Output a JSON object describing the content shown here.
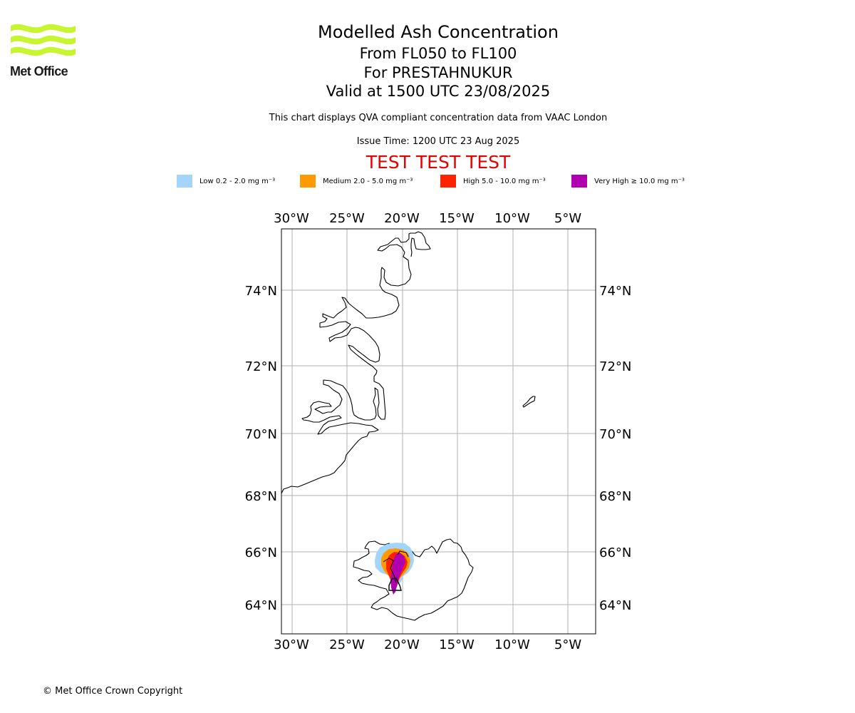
{
  "logo": {
    "name": "Met Office",
    "color_waves": "#c8f531"
  },
  "header": {
    "title": "Modelled Ash Concentration",
    "flight_levels": "From FL050 to FL100",
    "volcano": "For PRESTAHNUKUR",
    "valid_time": "Valid at 1500 UTC 23/08/2025",
    "description": "This chart displays QVA compliant concentration data from VAAC London",
    "issue_time": "Issue Time: 1200 UTC 23 Aug 2025",
    "test_banner": "TEST TEST TEST",
    "test_color": "#e60000"
  },
  "legend": [
    {
      "label": "Low 0.2 - 2.0 mg m⁻³",
      "color": "#a3d4fa"
    },
    {
      "label": "Medium 2.0 - 5.0 mg m⁻³",
      "color": "#ff9a00"
    },
    {
      "label": "High 5.0 - 10.0 mg m⁻³",
      "color": "#ff2200"
    },
    {
      "label": "Very High ≥ 10.0 mg m⁻³",
      "color": "#b000b0"
    }
  ],
  "map": {
    "lon_ticks": [
      "30°W",
      "25°W",
      "20°W",
      "15°W",
      "10°W",
      "5°W"
    ],
    "lat_ticks": [
      "74°N",
      "72°N",
      "70°N",
      "68°N",
      "66°N",
      "64°N"
    ],
    "grid": true,
    "regions": [
      "Greenland (east coast)",
      "Iceland",
      "Jan Mayen"
    ]
  },
  "footer": {
    "copyright": "© Met Office Crown Copyright"
  }
}
